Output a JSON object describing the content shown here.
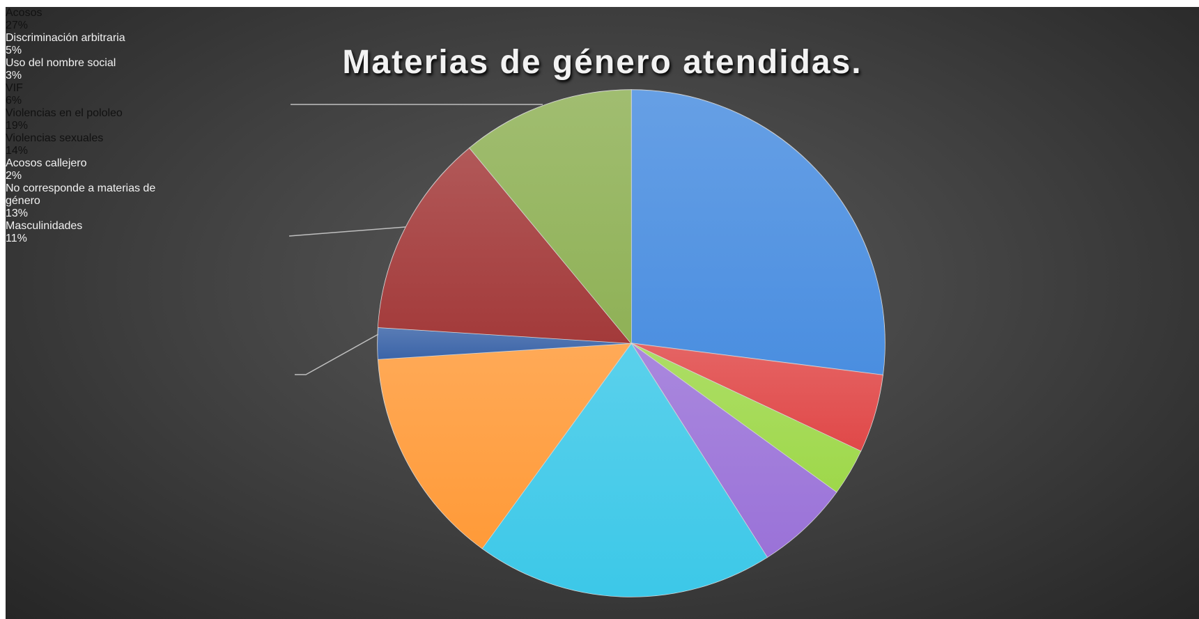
{
  "chart_data": {
    "type": "pie",
    "title": "Materias de género atendidas.",
    "categories": [
      "Acosos",
      "Discriminación arbitraria",
      "Uso del nombre social",
      "VIF",
      "Violencias en el pololeo",
      "Violencias sexuales",
      "Acosos callejero",
      "No corresponde a materias de género",
      "Masculinidades"
    ],
    "values": [
      27,
      5,
      3,
      6,
      19,
      14,
      2,
      13,
      11
    ],
    "value_labels": [
      "27%",
      "5%",
      "3%",
      "6%",
      "19%",
      "14%",
      "2%",
      "13%",
      "11%"
    ],
    "colors": [
      "#4a8ee0",
      "#e04848",
      "#9ed84a",
      "#9a72d8",
      "#3cc8e8",
      "#ff9a38",
      "#3b64a8",
      "#a33a3a",
      "#8fb156"
    ]
  }
}
